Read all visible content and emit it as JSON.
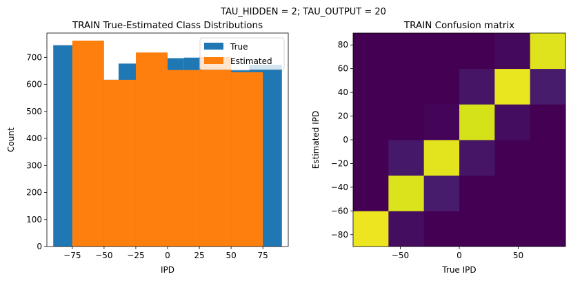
{
  "suptitle": "TAU_HIDDEN = 2; TAU_OUTPUT = 20",
  "colors": {
    "true": "#1f77b4",
    "estimated": "#ff7f0e",
    "viridis_low": "#440154",
    "viridis_mid": "#482878",
    "viridis_yellow": "#fde725",
    "viridis_lime": "#d5e21a"
  },
  "chart_data": [
    {
      "type": "bar",
      "title": "TRAIN True-Estimated Class Distributions",
      "xlabel": "IPD",
      "ylabel": "Count",
      "xlim": [
        -95,
        95
      ],
      "ylim": [
        0,
        790
      ],
      "xticks": [
        -75,
        -50,
        -25,
        0,
        25,
        50,
        75
      ],
      "xtick_labels": [
        "−75",
        "−50",
        "−25",
        "0",
        "25",
        "50",
        "75"
      ],
      "yticks": [
        0,
        100,
        200,
        300,
        400,
        500,
        600,
        700
      ],
      "yticks_labels": [
        "0",
        "100",
        "200",
        "300",
        "400",
        "500",
        "600",
        "700"
      ],
      "legend_placement": "top-right",
      "series": [
        {
          "name": "True",
          "bin_edges": [
            -90,
            -64.29,
            -38.57,
            -12.86,
            12.86,
            38.57,
            64.29,
            90
          ],
          "values": [
            745,
            617,
            677,
            697,
            699,
            652,
            672
          ]
        },
        {
          "name": "Estimated",
          "bin_edges": [
            -75,
            -50,
            -25,
            0,
            25,
            50,
            75
          ],
          "values": [
            762,
            617,
            718,
            653,
            701,
            645
          ]
        }
      ]
    },
    {
      "type": "heatmap",
      "title": "TRAIN Confusion matrix",
      "xlabel": "True IPD",
      "ylabel": "Estimated IPD",
      "xlim": [
        -90,
        90
      ],
      "ylim": [
        -90,
        90
      ],
      "xticks": [
        -50,
        0,
        50
      ],
      "xtick_labels": [
        "−50",
        "0",
        "50"
      ],
      "yticks": [
        -80,
        -60,
        -40,
        -20,
        0,
        20,
        40,
        60,
        80
      ],
      "ytick_labels": [
        "−80",
        "−60",
        "−40",
        "−20",
        "0",
        "20",
        "40",
        "60",
        "80"
      ],
      "x_centers": [
        -75,
        -45,
        -15,
        15,
        45,
        75
      ],
      "y_centers": [
        -75,
        -45,
        -15,
        15,
        45,
        75
      ],
      "values": [
        [
          0.97,
          0.0,
          0.0,
          0.0,
          0.0,
          0.0
        ],
        [
          0.03,
          0.93,
          0.06,
          0.0,
          0.0,
          0.0
        ],
        [
          0.0,
          0.07,
          0.95,
          0.01,
          0.0,
          0.0
        ],
        [
          0.0,
          0.0,
          0.05,
          0.92,
          0.05,
          0.0
        ],
        [
          0.0,
          0.0,
          0.0,
          0.03,
          0.96,
          0.02
        ],
        [
          0.0,
          0.0,
          0.0,
          0.0,
          0.07,
          0.94
        ]
      ]
    }
  ]
}
